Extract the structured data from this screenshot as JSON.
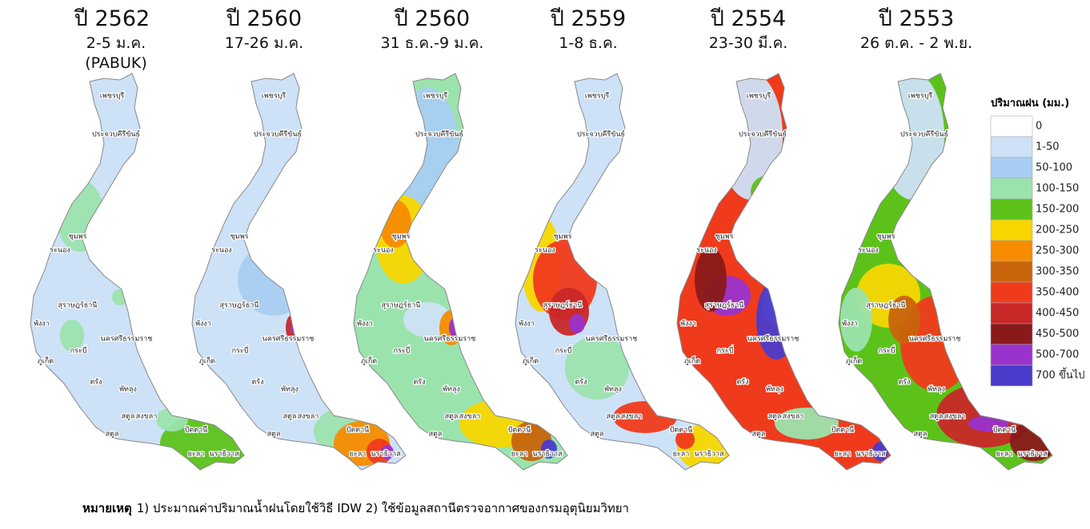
{
  "panels": [
    {
      "title": "ปี 2562",
      "subtitle": [
        "2-5 ม.ค.",
        "(PABUK)"
      ],
      "color": "#c8102e"
    },
    {
      "title": "ปี 2560",
      "subtitle": [
        "17-26 ม.ค."
      ],
      "color": "#111111"
    },
    {
      "title": "ปี 2560",
      "subtitle": [
        "31 ธ.ค.-9 ม.ค."
      ],
      "color": "#111111"
    },
    {
      "title": "ปี 2559",
      "subtitle": [
        "1-8 ธ.ค."
      ],
      "color": "#111111"
    },
    {
      "title": "ปี 2554",
      "subtitle": [
        "23-30 มี.ค."
      ],
      "color": "#111111"
    },
    {
      "title": "ปี 2553",
      "subtitle": [
        "26 ต.ค. - 2 พ.ย."
      ],
      "color": "#111111"
    }
  ],
  "provinces": [
    "เพชรบุรี",
    "ประจวบคีรีขันธ์",
    "ชุมพร",
    "ระนอง",
    "สุราษฎร์ธานี",
    "พังงา",
    "นครศรีธรรมราช",
    "กระบี่",
    "ภูเก็ต",
    "ตรัง",
    "พัทลุง",
    "สงขลา",
    "สตูล",
    "ปัตตานี",
    "ยะลา",
    "นราธิวาส"
  ],
  "legend": {
    "title": "ปริมาณฝน (มม.)",
    "items": [
      {
        "label": "0",
        "color": "#ffffff"
      },
      {
        "label": "1-50",
        "color": "#cde1f7"
      },
      {
        "label": "50-100",
        "color": "#a8cdf2"
      },
      {
        "label": "100-150",
        "color": "#9be3ad"
      },
      {
        "label": "150-200",
        "color": "#5cc21a"
      },
      {
        "label": "200-250",
        "color": "#f7d600"
      },
      {
        "label": "250-300",
        "color": "#f78c00"
      },
      {
        "label": "300-350",
        "color": "#c8640c"
      },
      {
        "label": "350-400",
        "color": "#f03a1c"
      },
      {
        "label": "400-450",
        "color": "#c82828"
      },
      {
        "label": "450-500",
        "color": "#8a1a1a"
      },
      {
        "label": "500-700",
        "color": "#9a33cc"
      },
      {
        "label": "700 ขึ้นไป",
        "color": "#4a3ccb"
      }
    ]
  },
  "note": {
    "label": "หมายเหตุ",
    "text": "1) ประมาณค่าปริมาณน้ำฝนโดยใช้วิธี IDW 2) ใช้ข้อมูลสถานีตรวจอากาศของกรมอุตุนิยมวิทยา"
  }
}
